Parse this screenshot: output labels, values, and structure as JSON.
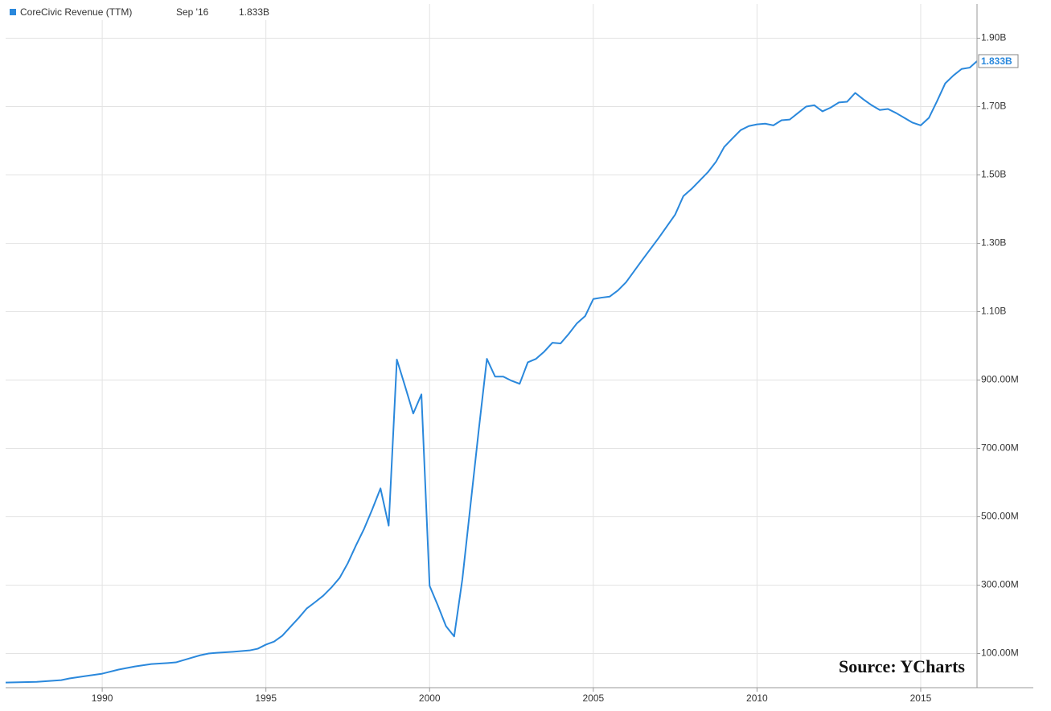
{
  "chart_data": {
    "type": "line",
    "annotation": "Source: YCharts",
    "latest_date": "Sep '16",
    "x": [
      1987.05,
      1988,
      1988.75,
      1989,
      1989.5,
      1990,
      1990.5,
      1991,
      1991.5,
      1992,
      1992.25,
      1992.5,
      1992.75,
      1993,
      1993.25,
      1993.5,
      1994,
      1994.5,
      1994.75,
      1995,
      1995.25,
      1995.5,
      1995.75,
      1996,
      1996.25,
      1996.5,
      1996.75,
      1997,
      1997.25,
      1997.5,
      1997.75,
      1998,
      1998.25,
      1998.5,
      1998.75,
      1999,
      1999.25,
      1999.5,
      1999.75,
      2000,
      2000.25,
      2000.5,
      2000.75,
      2001,
      2001.5,
      2001.75,
      2002,
      2002.25,
      2002.5,
      2002.75,
      2003,
      2003.25,
      2003.5,
      2003.75,
      2004,
      2004.25,
      2004.5,
      2004.75,
      2005,
      2005.25,
      2005.5,
      2005.75,
      2006,
      2006.5,
      2007,
      2007.5,
      2007.75,
      2008,
      2008.5,
      2008.75,
      2009,
      2009.25,
      2009.5,
      2009.75,
      2010,
      2010.25,
      2010.5,
      2010.75,
      2011,
      2011.25,
      2011.5,
      2011.75,
      2012,
      2012.25,
      2012.5,
      2012.75,
      2013,
      2013.25,
      2013.5,
      2013.75,
      2014,
      2014.25,
      2014.5,
      2014.75,
      2015,
      2015.25,
      2015.5,
      2015.75,
      2016,
      2016.25,
      2016.5,
      2016.72
    ],
    "series": [
      {
        "name": "CoreCivic Revenue (TTM)",
        "color": "#2a88dc",
        "values": [
          15000000,
          17000000,
          22000000,
          27000000,
          34000000,
          41000000,
          53000000,
          62000000,
          69000000,
          72000000,
          74000000,
          81000000,
          88000000,
          95000000,
          100000000,
          102000000,
          105000000,
          109000000,
          114000000,
          126000000,
          135000000,
          152000000,
          178000000,
          204000000,
          232000000,
          250000000,
          269000000,
          293000000,
          321000000,
          364000000,
          416000000,
          465000000,
          522000000,
          583000000,
          474000000,
          960000000,
          882000000,
          802000000,
          858000000,
          298000000,
          241000000,
          180000000,
          150000000,
          317000000,
          753000000,
          962000000,
          910000000,
          910000000,
          898000000,
          889000000,
          952000000,
          962000000,
          983000000,
          1009000000,
          1007000000,
          1035000000,
          1066000000,
          1087000000,
          1137000000,
          1141000000,
          1144000000,
          1162000000,
          1186000000,
          1252000000,
          1316000000,
          1384000000,
          1438000000,
          1459000000,
          1508000000,
          1539000000,
          1582000000,
          1607000000,
          1631000000,
          1643000000,
          1648000000,
          1650000000,
          1645000000,
          1660000000,
          1662000000,
          1681000000,
          1700000000,
          1704000000,
          1686000000,
          1697000000,
          1712000000,
          1714000000,
          1740000000,
          1721000000,
          1704000000,
          1690000000,
          1693000000,
          1681000000,
          1667000000,
          1653000000,
          1645000000,
          1667000000,
          1716000000,
          1768000000,
          1791000000,
          1810000000,
          1814000000,
          1833000000
        ],
        "value_labels": [
          null,
          null,
          null,
          null,
          null,
          null,
          null,
          null,
          null,
          null,
          null,
          null,
          null,
          null,
          null,
          null,
          null,
          null,
          null,
          null,
          null,
          null,
          null,
          null,
          null,
          null,
          null,
          null,
          null,
          null,
          null,
          null,
          null,
          null,
          null,
          null,
          null,
          null,
          null,
          null,
          null,
          null,
          null,
          null,
          null,
          null,
          null,
          null,
          null,
          null,
          null,
          null,
          null,
          null,
          null,
          null,
          null,
          null,
          null,
          null,
          null,
          null,
          null,
          null,
          null,
          null,
          null,
          null,
          null,
          null,
          null,
          null,
          null,
          null,
          null,
          null,
          null,
          null,
          null,
          null,
          null,
          null,
          null,
          null,
          null,
          null,
          null,
          null,
          null,
          null,
          null,
          null,
          null,
          null,
          null,
          null,
          null,
          null,
          null,
          null,
          null,
          "1.833B"
        ]
      }
    ],
    "xlim": [
      1987.05,
      2016.72
    ],
    "xticks": [
      1990,
      1995,
      2000,
      2005,
      2010,
      2015
    ],
    "ylim": [
      0,
      2000000000
    ],
    "yticks": [
      {
        "value": 100000000,
        "label": "100.00M"
      },
      {
        "value": 300000000,
        "label": "300.00M"
      },
      {
        "value": 500000000,
        "label": "500.00M"
      },
      {
        "value": 700000000,
        "label": "700.00M"
      },
      {
        "value": 900000000,
        "label": "900.00M"
      },
      {
        "value": 1100000000,
        "label": "1.10B"
      },
      {
        "value": 1300000000,
        "label": "1.30B"
      },
      {
        "value": 1500000000,
        "label": "1.50B"
      },
      {
        "value": 1700000000,
        "label": "1.70B"
      },
      {
        "value": 1900000000,
        "label": "1.90B"
      }
    ],
    "grid": true
  }
}
